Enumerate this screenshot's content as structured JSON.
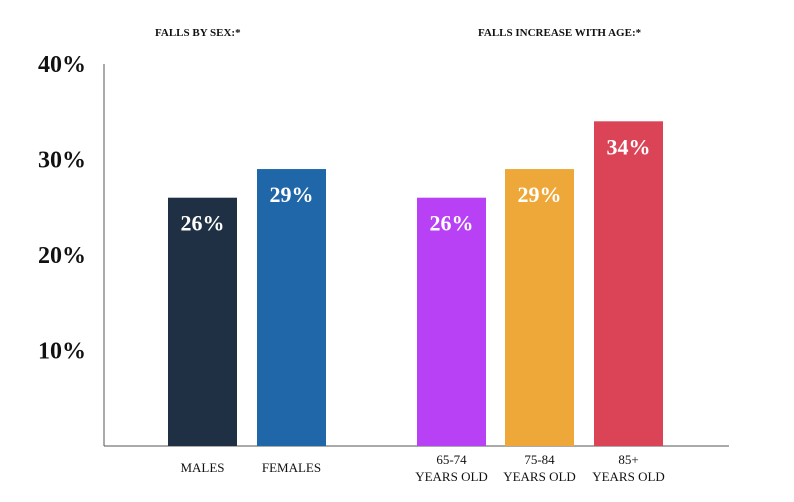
{
  "chart_data": {
    "type": "bar",
    "groups": [
      {
        "title": "FALLS BY SEX:*",
        "categories": [
          [
            "MALES"
          ],
          [
            "FEMALES"
          ]
        ],
        "values": [
          26,
          29
        ],
        "value_labels": [
          "26%",
          "29%"
        ],
        "colors": [
          "#1f3044",
          "#1f67a8"
        ]
      },
      {
        "title": "FALLS INCREASE WITH AGE:*",
        "categories": [
          [
            "65-74",
            "YEARS OLD"
          ],
          [
            "75-84",
            "YEARS OLD"
          ],
          [
            "85+",
            "YEARS OLD"
          ]
        ],
        "values": [
          26,
          29,
          34
        ],
        "value_labels": [
          "26%",
          "29%",
          "34%"
        ],
        "colors": [
          "#b840f5",
          "#eea83a",
          "#db4457"
        ]
      }
    ],
    "ylim": [
      0,
      40
    ],
    "yticks": [
      10,
      20,
      30,
      40
    ],
    "ytick_labels": [
      "10%",
      "20%",
      "30%",
      "40%"
    ],
    "xlabel": "",
    "ylabel": "",
    "grid": false
  }
}
